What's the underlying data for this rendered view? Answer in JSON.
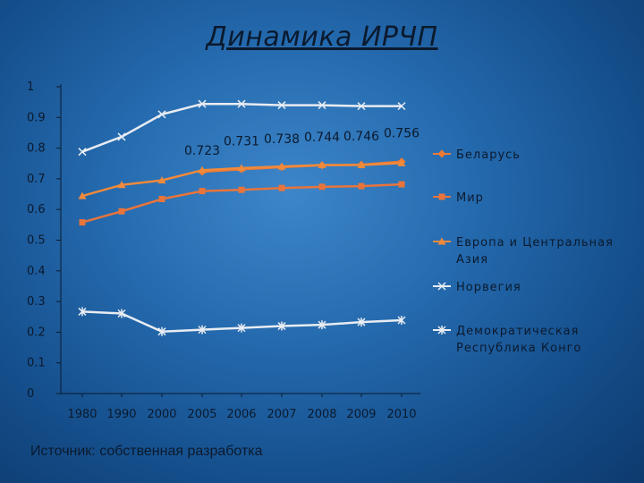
{
  "slide": {
    "title": "Динамика ИРЧП",
    "source": "Источник: собственная разработка"
  },
  "colors": {
    "belarus": "#f07a33",
    "world": "#e8743b",
    "europe": "#f08a3c",
    "norway": "#e8ecf2",
    "congo": "#e8ecf2"
  },
  "chart_data": {
    "type": "line",
    "title": "",
    "xlabel": "",
    "ylabel": "",
    "ylim": [
      0,
      1
    ],
    "yticks": [
      "0",
      "0.1",
      "0.2",
      "0.3",
      "0.4",
      "0.5",
      "0.6",
      "0.7",
      "0.8",
      "0.9",
      "1"
    ],
    "grid": false,
    "legend_position": "right",
    "categories": [
      "1980",
      "1990",
      "2000",
      "2005",
      "2006",
      "2007",
      "2008",
      "2009",
      "2010"
    ],
    "series": [
      {
        "name": "Беларусь",
        "marker": "diamond",
        "values": [
          null,
          null,
          null,
          0.723,
          0.731,
          0.738,
          0.744,
          0.746,
          0.756
        ],
        "labels": [
          "",
          "",
          "",
          "0.723",
          "0.731",
          "0.738",
          "0.744",
          "0.746",
          "0.756"
        ]
      },
      {
        "name": "Мир",
        "marker": "square",
        "values": [
          0.558,
          0.594,
          0.634,
          0.66,
          0.664,
          0.67,
          0.674,
          0.676,
          0.682
        ]
      },
      {
        "name": "Европа и Центральная Азия",
        "marker": "triangle",
        "values": [
          0.644,
          0.68,
          0.695,
          0.728,
          0.735,
          0.74,
          0.745,
          0.745,
          0.751
        ]
      },
      {
        "name": "Норвегия",
        "marker": "x",
        "values": [
          0.788,
          0.837,
          0.91,
          0.944,
          0.944,
          0.94,
          0.94,
          0.937,
          0.937
        ]
      },
      {
        "name": "Демократическая Республика Конго",
        "marker": "star",
        "values": [
          0.267,
          0.261,
          0.202,
          0.208,
          0.214,
          0.22,
          0.224,
          0.233,
          0.239
        ]
      }
    ]
  }
}
